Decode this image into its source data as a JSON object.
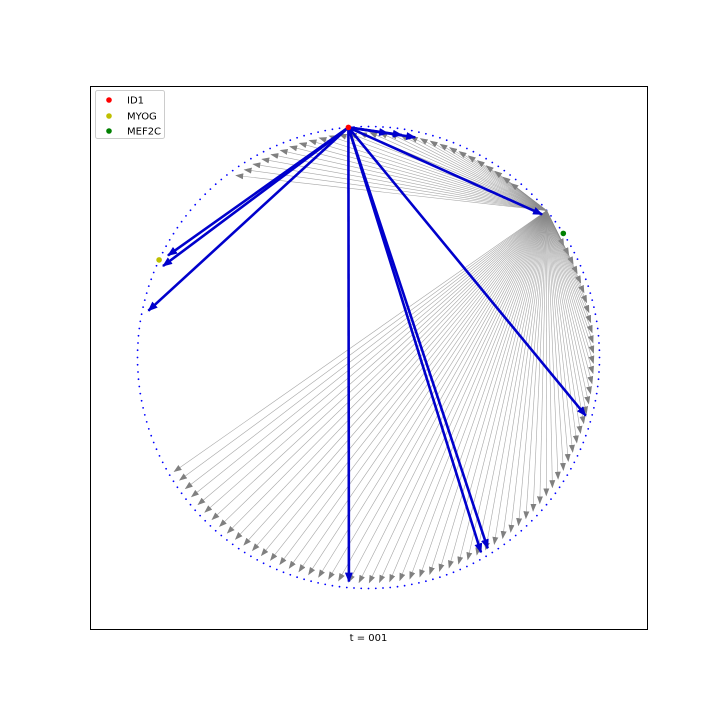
{
  "caption": "t = 001",
  "legend": [
    {
      "label": "ID1",
      "color": "#ff0000"
    },
    {
      "label": "MYOG",
      "color": "#bfbf00"
    },
    {
      "label": "MEF2C",
      "color": "#008000"
    }
  ],
  "colors": {
    "ring_dots": "#0000ff",
    "thin_edges": "#888888",
    "highlight_edges": "#0000cc",
    "axes_frame": "#000000"
  }
}
